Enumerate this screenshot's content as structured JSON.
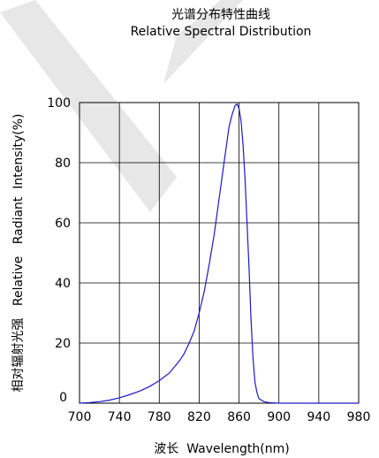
{
  "chart_data": {
    "type": "line",
    "title": "光谱分布特性曲线",
    "subtitle": "Relative Spectral Distribution",
    "xlabel": "波长  Wavelength(nm)",
    "ylabel": "相对辐射光强   Relative   Radiant  Intensity(%)",
    "xlim": [
      700,
      980
    ],
    "ylim": [
      0,
      100
    ],
    "x_ticks": [
      700,
      740,
      780,
      820,
      860,
      900,
      940,
      980
    ],
    "y_ticks": [
      0,
      20,
      40,
      60,
      80,
      100
    ],
    "grid": true,
    "line_color": "#1a1acc",
    "series": [
      {
        "x": [
          700,
          710,
          720,
          730,
          740,
          750,
          760,
          770,
          780,
          790,
          800,
          805,
          810,
          815,
          820,
          825,
          830,
          835,
          840,
          845,
          850,
          853,
          856,
          858,
          860,
          862,
          864,
          866,
          868,
          870,
          872,
          874,
          876,
          878,
          880,
          885,
          890,
          900,
          920,
          940,
          960,
          980
        ],
        "y": [
          0,
          0.2,
          0.5,
          1,
          1.8,
          2.8,
          4,
          5.5,
          7.5,
          10,
          14,
          16.5,
          20,
          24,
          30,
          37,
          46,
          56,
          68,
          80,
          92,
          96,
          99,
          99.5,
          98,
          94,
          86,
          75,
          60,
          45,
          28,
          15,
          7,
          3.5,
          1.5,
          0.5,
          0.2,
          0,
          0,
          0,
          0,
          0
        ]
      }
    ]
  }
}
